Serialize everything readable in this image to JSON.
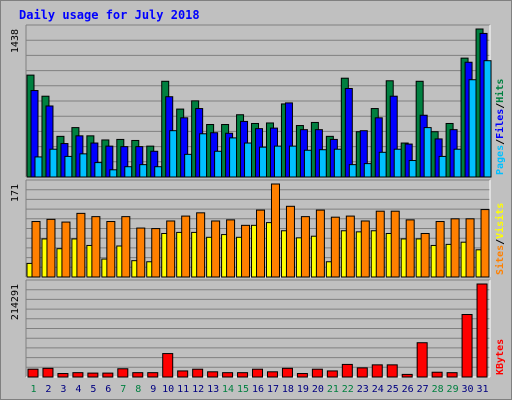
{
  "title": "Daily usage for July 2018",
  "colors": {
    "hits": "#008040",
    "files": "#0000ff",
    "pages": "#00c0ff",
    "visits": "#ffff00",
    "sites": "#ff8000",
    "kbytes": "#ff0000",
    "weekend_label": "#008040",
    "weekday_label": "#000080"
  },
  "chart_data": [
    {
      "type": "bar",
      "title": "Daily usage for July 2018",
      "categories": [
        "1",
        "2",
        "3",
        "4",
        "5",
        "6",
        "7",
        "8",
        "9",
        "10",
        "11",
        "12",
        "13",
        "14",
        "15",
        "16",
        "17",
        "18",
        "19",
        "20",
        "21",
        "22",
        "23",
        "24",
        "25",
        "26",
        "27",
        "28",
        "29",
        "30",
        "31"
      ],
      "weekend_days": [
        "1",
        "7",
        "8",
        "14",
        "15",
        "21",
        "22",
        "28",
        "29"
      ],
      "ymax_label": "1438",
      "ylim": [
        0,
        1438
      ],
      "legend": {
        "position": "right",
        "labels": [
          "Pages",
          "/",
          "Files",
          "/",
          "Hits"
        ]
      },
      "series": [
        {
          "name": "Hits",
          "values": [
            990,
            785,
            395,
            480,
            400,
            360,
            365,
            355,
            300,
            930,
            660,
            740,
            510,
            510,
            605,
            520,
            525,
            710,
            500,
            530,
            395,
            960,
            440,
            665,
            935,
            330,
            930,
            440,
            520,
            1155,
            1438
          ]
        },
        {
          "name": "Files",
          "values": [
            840,
            690,
            325,
            400,
            330,
            300,
            295,
            295,
            250,
            780,
            575,
            665,
            430,
            425,
            540,
            470,
            475,
            720,
            460,
            460,
            365,
            860,
            450,
            575,
            785,
            320,
            600,
            370,
            460,
            1115,
            1395
          ]
        },
        {
          "name": "Pages",
          "values": [
            195,
            270,
            200,
            225,
            140,
            70,
            100,
            120,
            100,
            450,
            220,
            420,
            250,
            380,
            330,
            290,
            300,
            300,
            260,
            265,
            270,
            120,
            130,
            240,
            270,
            160,
            480,
            200,
            270,
            945,
            1130
          ]
        }
      ]
    },
    {
      "type": "bar",
      "ymax_label": "171",
      "ylim": [
        0,
        171
      ],
      "legend": {
        "position": "right",
        "labels": [
          "Sites",
          "/",
          "Visits"
        ]
      },
      "series": [
        {
          "name": "Visits",
          "values": [
            25,
            70,
            52,
            70,
            58,
            33,
            57,
            30,
            28,
            80,
            82,
            82,
            73,
            78,
            73,
            95,
            100,
            85,
            72,
            75,
            28,
            85,
            83,
            85,
            80,
            70,
            70,
            58,
            60,
            64,
            50
          ]
        },
        {
          "name": "Sites",
          "values": [
            102,
            106,
            101,
            117,
            111,
            102,
            111,
            90,
            89,
            103,
            112,
            118,
            103,
            105,
            95,
            123,
            171,
            130,
            111,
            123,
            110,
            112,
            103,
            121,
            121,
            105,
            80,
            102,
            107,
            107,
            124
          ]
        }
      ]
    },
    {
      "type": "bar",
      "ymax_label": "214291",
      "ylim": [
        0,
        214291
      ],
      "legend": {
        "position": "right",
        "labels": [
          "KBytes"
        ]
      },
      "series": [
        {
          "name": "KBytes",
          "values": [
            18000,
            20000,
            8000,
            10000,
            9000,
            9000,
            19000,
            10000,
            10000,
            54000,
            14000,
            18000,
            12000,
            10000,
            10000,
            18000,
            12000,
            20000,
            8000,
            18000,
            14000,
            29000,
            21000,
            28000,
            28000,
            6000,
            79000,
            11000,
            10000,
            144000,
            214291
          ]
        }
      ]
    }
  ]
}
